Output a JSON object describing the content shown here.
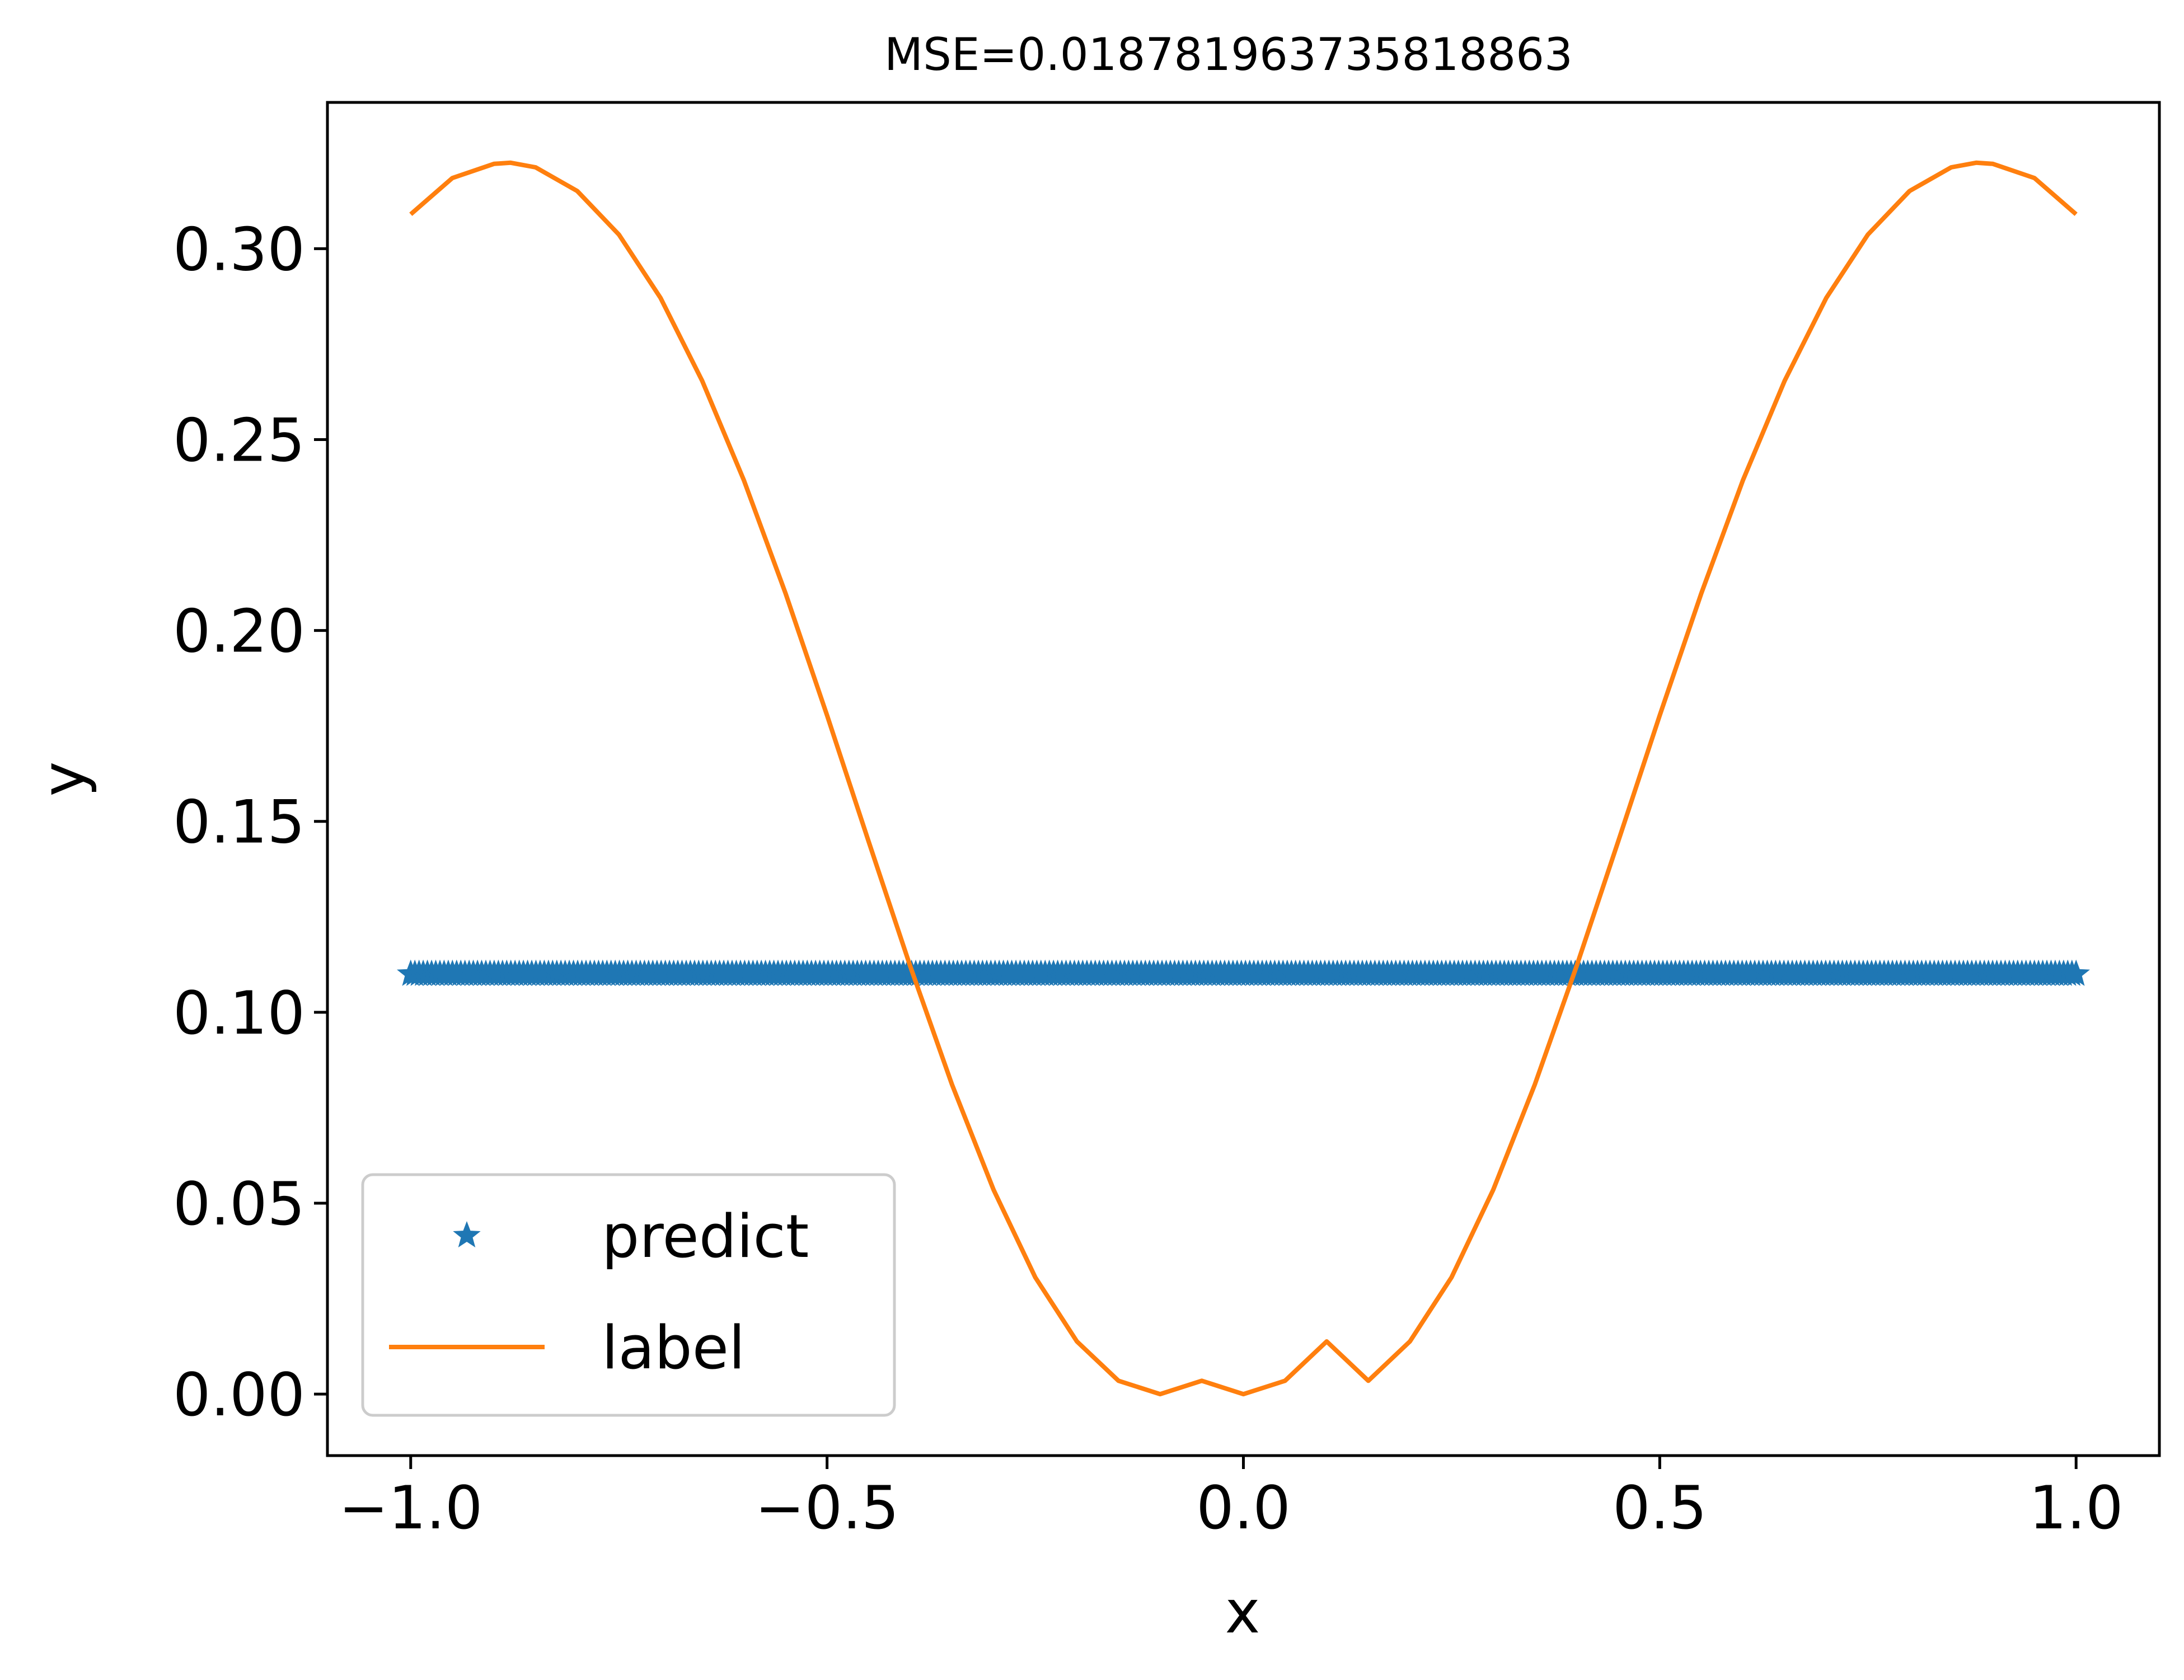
{
  "chart_data": {
    "type": "line",
    "title": "MSE=0.018781963735818863",
    "xlabel": "x",
    "ylabel": "y",
    "xlim": [
      -1.1,
      1.1
    ],
    "ylim": [
      -0.0161,
      0.3383
    ],
    "x_ticks": [
      -1.0,
      -0.5,
      0.0,
      0.5,
      1.0
    ],
    "x_tick_labels": [
      "−1.0",
      "−0.5",
      "0.0",
      "0.5",
      "1.0"
    ],
    "y_ticks": [
      0.0,
      0.05,
      0.1,
      0.15,
      0.2,
      0.25,
      0.3
    ],
    "y_tick_labels": [
      "0.00",
      "0.05",
      "0.10",
      "0.15",
      "0.20",
      "0.25",
      "0.30"
    ],
    "grid": false,
    "legend_position": "lower-left",
    "series": [
      {
        "name": "predict",
        "kind": "scatter",
        "marker": "star",
        "color": "#1f77b4",
        "x_range": [
          -1.0,
          1.0
        ],
        "y": 0.11
      },
      {
        "name": "label",
        "kind": "line",
        "color": "#ff7f0e",
        "x": [
          -1.0,
          -0.95,
          -0.9,
          -0.88,
          -0.85,
          -0.8,
          -0.75,
          -0.7,
          -0.65,
          -0.6,
          -0.55,
          -0.5,
          -0.45,
          -0.4,
          -0.35,
          -0.3,
          -0.25,
          -0.2,
          -0.15,
          -0.1,
          -0.05,
          0.0,
          0.05,
          0.1,
          0.15,
          0.2,
          0.25,
          0.3,
          0.35,
          0.4,
          0.45,
          0.5,
          0.55,
          0.6,
          0.65,
          0.7,
          0.75,
          0.8,
          0.85,
          0.88,
          0.9,
          0.95,
          1.0
        ],
        "y": [
          0.309,
          0.3185,
          0.3222,
          0.3225,
          0.3213,
          0.3151,
          0.3037,
          0.2871,
          0.2654,
          0.2394,
          0.2098,
          0.1778,
          0.1447,
          0.112,
          0.0811,
          0.0535,
          0.0306,
          0.0138,
          0.0035,
          0.0,
          0.0035,
          0.0,
          0.0035,
          0.0138,
          0.0035,
          0.0138,
          0.0306,
          0.0535,
          0.0811,
          0.112,
          0.1447,
          0.1778,
          0.2098,
          0.2394,
          0.2654,
          0.2871,
          0.3037,
          0.3151,
          0.3213,
          0.3225,
          0.3222,
          0.3185,
          0.309
        ]
      }
    ]
  }
}
